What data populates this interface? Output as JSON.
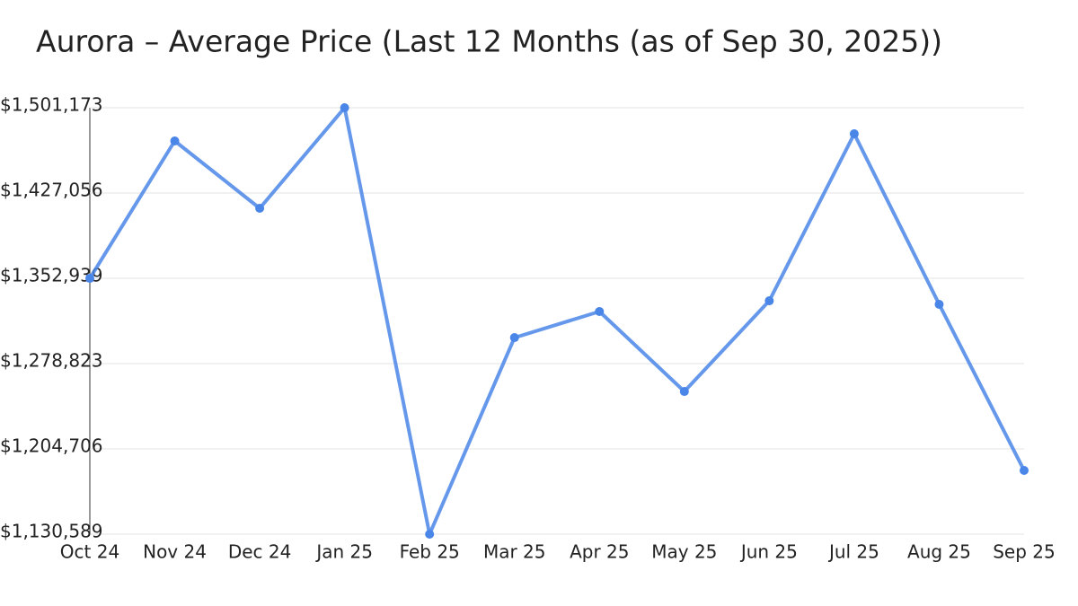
{
  "chart_data": {
    "type": "line",
    "title": "Aurora – Average Price (Last 12 Months (as of Sep 30, 2025))",
    "categories": [
      "Oct 24",
      "Nov 24",
      "Dec 24",
      "Jan 25",
      "Feb 25",
      "Mar 25",
      "Apr 25",
      "May 25",
      "Jun 25",
      "Jul 25",
      "Aug 25",
      "Sep 25"
    ],
    "series": [
      {
        "name": "Average Price",
        "color": "#4a86e8",
        "values": [
          1352900,
          1472300,
          1413800,
          1501173,
          1130589,
          1301400,
          1324100,
          1254600,
          1333400,
          1478500,
          1330300,
          1186000
        ]
      }
    ],
    "ylim": [
      1130589,
      1501173
    ],
    "yticks": [
      {
        "value": 1130589,
        "label": "$1,130,589"
      },
      {
        "value": 1204706,
        "label": "$1,204,706"
      },
      {
        "value": 1278823,
        "label": "$1,278,823"
      },
      {
        "value": 1352939,
        "label": "$1,352,939"
      },
      {
        "value": 1427056,
        "label": "$1,427,056"
      },
      {
        "value": 1501173,
        "label": "$1,501,173"
      }
    ],
    "grid": true
  }
}
